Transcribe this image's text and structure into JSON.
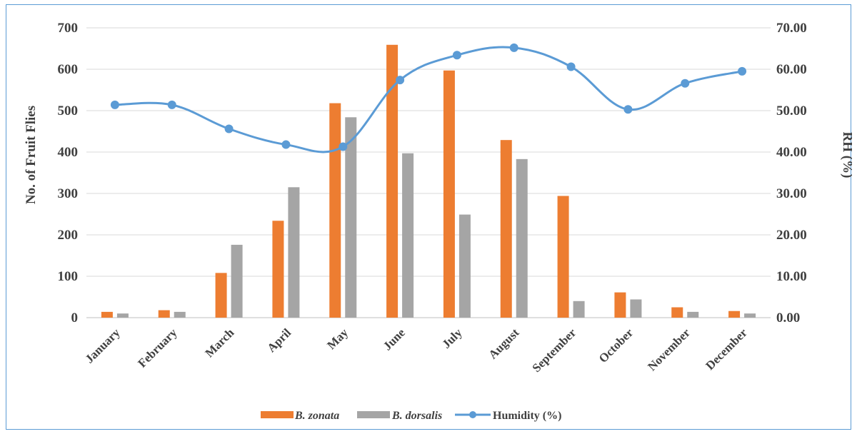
{
  "chart_data": {
    "type": "bar",
    "categories": [
      "January",
      "February",
      "March",
      "April",
      "May",
      "June",
      "July",
      "August",
      "September",
      "October",
      "November",
      "December"
    ],
    "series": [
      {
        "name": "B. zonata",
        "kind": "bar",
        "axis": "left",
        "color": "#ed7d31",
        "values": [
          14,
          18,
          108,
          234,
          518,
          659,
          597,
          429,
          294,
          61,
          25,
          16
        ]
      },
      {
        "name": "B. dorsalis",
        "kind": "bar",
        "axis": "left",
        "color": "#a5a5a5",
        "values": [
          10,
          14,
          176,
          315,
          484,
          397,
          249,
          383,
          40,
          44,
          14,
          10
        ]
      },
      {
        "name": "Humidity (%)",
        "kind": "line",
        "axis": "right",
        "color": "#5b9bd5",
        "values": [
          51.4,
          51.4,
          45.6,
          41.8,
          41.3,
          57.4,
          63.4,
          65.2,
          60.6,
          50.3,
          56.6,
          59.5
        ]
      }
    ],
    "ylabel": "No. of Fruit Flies",
    "y2label": "RH (%)",
    "ylim": [
      0,
      700
    ],
    "y2lim": [
      0,
      70
    ],
    "yticks": [
      "0",
      "100",
      "200",
      "300",
      "400",
      "500",
      "600",
      "700"
    ],
    "y2ticks": [
      "0.00",
      "10.00",
      "20.00",
      "30.00",
      "40.00",
      "50.00",
      "60.00",
      "70.00"
    ],
    "grid": true,
    "legend_position": "bottom"
  },
  "legend": {
    "zonata": "B. zonata",
    "dorsalis": "B. dorsalis",
    "humidity": "Humidity (%)"
  }
}
